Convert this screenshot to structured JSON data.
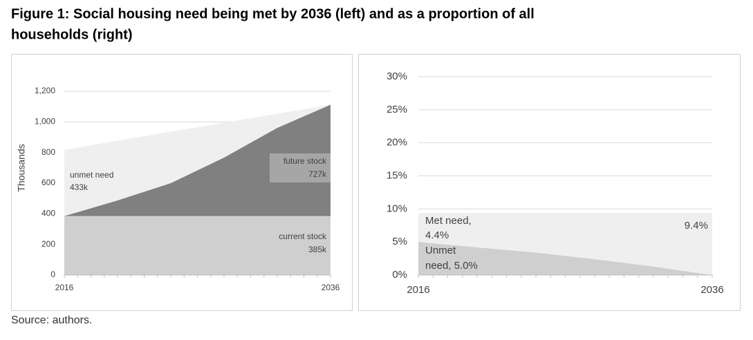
{
  "title": [
    "Figure 1: Social housing need being met by 2036 (left) and as a proportion of all",
    "households (right)"
  ],
  "source": "Source: authors.",
  "chart_data": [
    {
      "type": "area",
      "stacked": true,
      "grid": true,
      "ylabel": "Thousands",
      "x": [
        2016,
        2020,
        2024,
        2028,
        2032,
        2036
      ],
      "xlim": [
        2016,
        2036
      ],
      "xticks": [
        2016,
        2036
      ],
      "minor_xticks": [
        2016,
        2017,
        2018,
        2019,
        2020,
        2021,
        2022,
        2023,
        2024,
        2025,
        2026,
        2027,
        2028,
        2029,
        2030,
        2031,
        2032,
        2033,
        2034,
        2035,
        2036
      ],
      "ylim": [
        0,
        1200
      ],
      "yticks": [
        0,
        200,
        400,
        600,
        800,
        {
          "value": 1000,
          "label": "1,000"
        },
        {
          "value": 1200,
          "label": "1,200"
        }
      ],
      "series": [
        {
          "color": "#d0cfcf",
          "values": [
            385,
            385,
            385,
            385,
            385,
            385
          ]
        },
        {
          "color": "#808080",
          "values": [
            0,
            102,
            215,
            382,
            576,
            727
          ]
        },
        {
          "color": "#efefef",
          "values": [
            433,
            390,
            336,
            227,
            92,
            0
          ]
        }
      ],
      "annotations": [
        {
          "lines": [
            "unmet need",
            "433k"
          ]
        },
        {
          "lines": [
            "future stock",
            "727k"
          ]
        },
        {
          "lines": [
            "current stock",
            "385k"
          ]
        }
      ]
    },
    {
      "type": "area",
      "stacked": true,
      "grid": true,
      "x": [
        2016,
        2020,
        2024,
        2028,
        2032,
        2036
      ],
      "xlim": [
        2016,
        2036
      ],
      "xticks": [
        2016,
        2036
      ],
      "minor_xticks": [
        2016,
        2017,
        2018,
        2019,
        2020,
        2021,
        2022,
        2023,
        2024,
        2025,
        2026,
        2027,
        2028,
        2029,
        2030,
        2031,
        2032,
        2033,
        2034,
        2035,
        2036
      ],
      "ylim": [
        0,
        30
      ],
      "yticks": [
        {
          "value": 0,
          "label": "0%"
        },
        {
          "value": 5,
          "label": "5%"
        },
        {
          "value": 10,
          "label": "10%"
        },
        {
          "value": 15,
          "label": "15%"
        },
        {
          "value": 20,
          "label": "20%"
        },
        {
          "value": 25,
          "label": "25%"
        },
        {
          "value": 30,
          "label": "30%"
        }
      ],
      "series": [
        {
          "color": "#cfcfcf",
          "values": [
            5.0,
            4.2,
            3.4,
            2.4,
            1.3,
            0
          ]
        },
        {
          "color": "#efefef",
          "values": [
            4.4,
            5.2,
            6.0,
            7.0,
            8.1,
            9.4
          ]
        }
      ],
      "annotations": [
        {
          "lines": [
            "Met need,",
            "4.4%"
          ]
        },
        {
          "lines": [
            "Unmet",
            "need, 5.0%"
          ]
        },
        {
          "lines": [
            "9.4%"
          ]
        }
      ]
    }
  ]
}
